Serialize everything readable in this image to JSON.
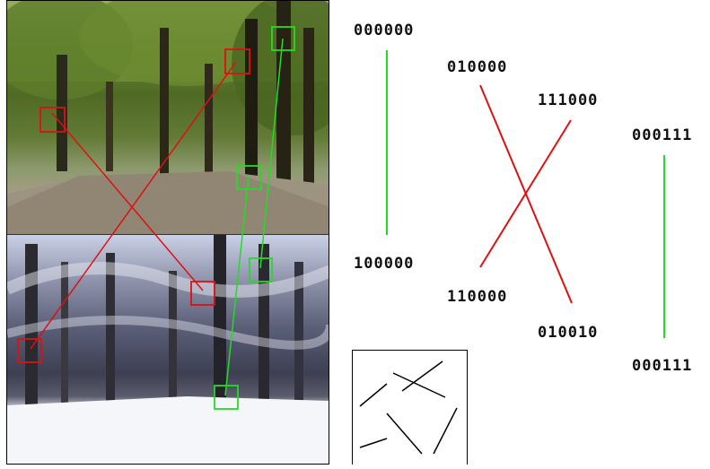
{
  "codes": {
    "top_left": "000000",
    "bottom_left": "100000",
    "mid_top": "010000",
    "mid_bottom": "110000",
    "right_top": "111000",
    "right_bottom": "010010",
    "far_top": "000111",
    "far_bottom": "000111"
  },
  "colors": {
    "match": "#22dd22",
    "mismatch": "#dd1111"
  },
  "scenes": [
    "summer-park-photo",
    "winter-park-photo"
  ]
}
